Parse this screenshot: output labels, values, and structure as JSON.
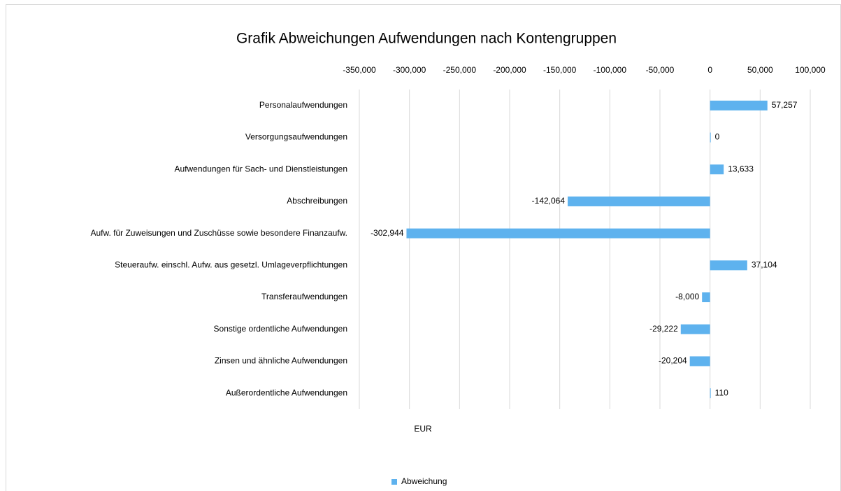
{
  "chart_data": {
    "type": "barh",
    "title": "Grafik Abweichungen Aufwendungen nach Kontengruppen",
    "xlabel": "EUR",
    "categories": [
      "Personalaufwendungen",
      "Versorgungsaufwendungen",
      "Aufwendungen für Sach- und Dienstleistungen",
      "Abschreibungen",
      "Aufw. für Zuweisungen und Zuschüsse sowie besondere Finanzaufw.",
      "Steueraufw. einschl. Aufw. aus gesetzl. Umlageverpflichtungen",
      "Transferaufwendungen",
      "Sonstige ordentliche Aufwendungen",
      "Zinsen und ähnliche Aufwendungen",
      "Außerordentliche Aufwendungen"
    ],
    "series": [
      {
        "name": "Abweichung",
        "color": "#5eb2ee",
        "values": [
          57257,
          0,
          13633,
          -142064,
          -302944,
          37104,
          -8000,
          -29222,
          -20204,
          110
        ],
        "value_labels": [
          "57,257",
          "0",
          "13,633",
          "-142,064",
          "-302,944",
          "37,104",
          "-8,000",
          "-29,222",
          "-20,204",
          "110"
        ]
      }
    ],
    "xlim": [
      -350000,
      100000
    ],
    "xticks": [
      {
        "value": -350000,
        "label": "-350,000"
      },
      {
        "value": -300000,
        "label": "-300,000"
      },
      {
        "value": -250000,
        "label": "-250,000"
      },
      {
        "value": -200000,
        "label": "-200,000"
      },
      {
        "value": -150000,
        "label": "-150,000"
      },
      {
        "value": -100000,
        "label": "-100,000"
      },
      {
        "value": -50000,
        "label": "-50,000"
      },
      0,
      {
        "value": 50000,
        "label": "50,000"
      },
      {
        "value": 100000,
        "label": "100,000"
      }
    ],
    "grid": true,
    "legend": "bottom"
  }
}
